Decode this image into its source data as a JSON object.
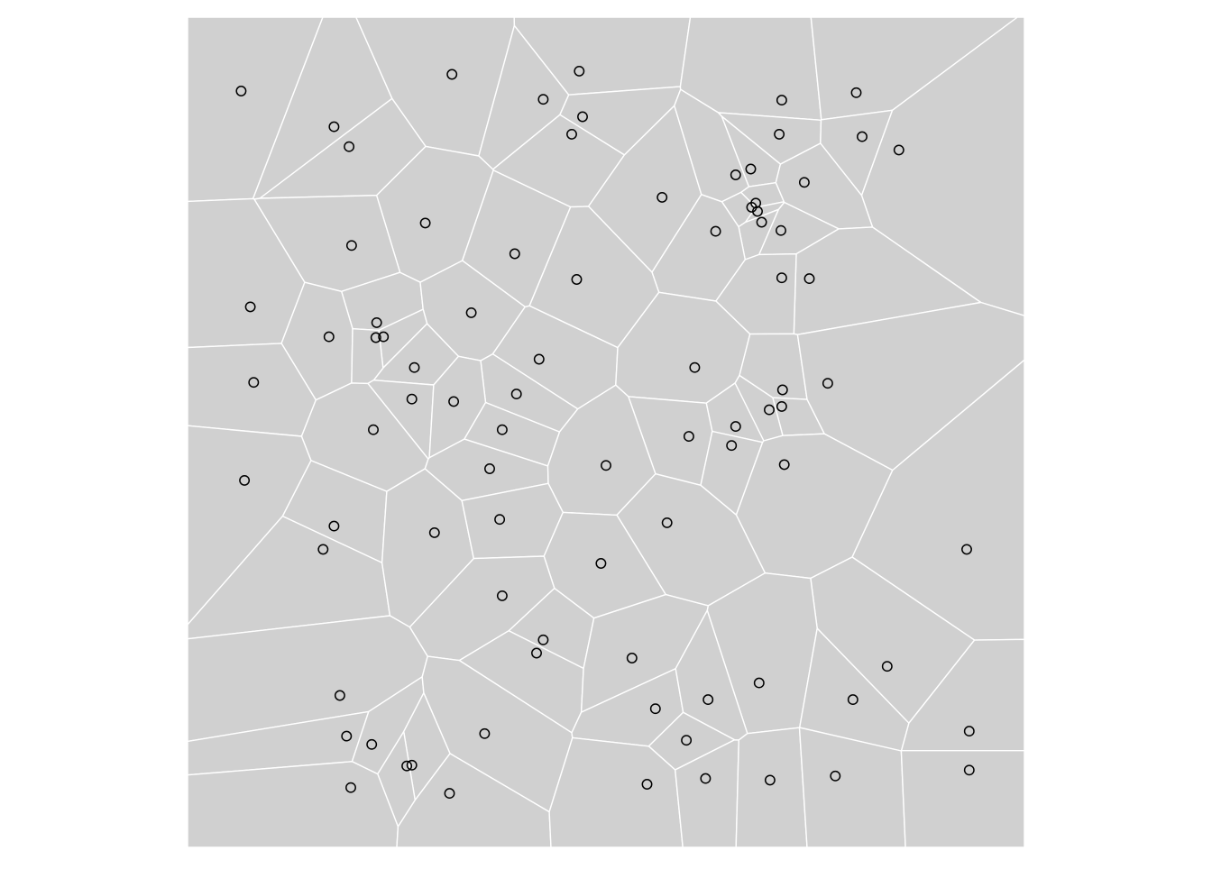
{
  "chart_data": {
    "type": "scatter",
    "title": "",
    "xlabel": "",
    "ylabel": "",
    "xlim": [
      0,
      1
    ],
    "ylim": [
      0,
      1
    ],
    "grid": false,
    "legend": "none",
    "colors": {
      "cell_fill": "#d0d0d0",
      "cell_edge": "#ffffff",
      "point_stroke": "#000000",
      "background": "#ffffff"
    },
    "points": [
      [
        0.064,
        0.911
      ],
      [
        0.175,
        0.868
      ],
      [
        0.193,
        0.844
      ],
      [
        0.316,
        0.931
      ],
      [
        0.425,
        0.901
      ],
      [
        0.468,
        0.935
      ],
      [
        0.472,
        0.88
      ],
      [
        0.459,
        0.859
      ],
      [
        0.567,
        0.783
      ],
      [
        0.71,
        0.9
      ],
      [
        0.799,
        0.909
      ],
      [
        0.707,
        0.859
      ],
      [
        0.806,
        0.856
      ],
      [
        0.85,
        0.84
      ],
      [
        0.655,
        0.81
      ],
      [
        0.673,
        0.817
      ],
      [
        0.737,
        0.801
      ],
      [
        0.679,
        0.776
      ],
      [
        0.674,
        0.771
      ],
      [
        0.681,
        0.766
      ],
      [
        0.686,
        0.753
      ],
      [
        0.631,
        0.742
      ],
      [
        0.709,
        0.743
      ],
      [
        0.743,
        0.685
      ],
      [
        0.71,
        0.686
      ],
      [
        0.284,
        0.752
      ],
      [
        0.196,
        0.725
      ],
      [
        0.391,
        0.715
      ],
      [
        0.465,
        0.684
      ],
      [
        0.075,
        0.651
      ],
      [
        0.226,
        0.632
      ],
      [
        0.339,
        0.644
      ],
      [
        0.234,
        0.615
      ],
      [
        0.271,
        0.578
      ],
      [
        0.169,
        0.615
      ],
      [
        0.225,
        0.614
      ],
      [
        0.079,
        0.56
      ],
      [
        0.42,
        0.588
      ],
      [
        0.393,
        0.546
      ],
      [
        0.268,
        0.54
      ],
      [
        0.318,
        0.537
      ],
      [
        0.376,
        0.503
      ],
      [
        0.606,
        0.578
      ],
      [
        0.711,
        0.551
      ],
      [
        0.71,
        0.531
      ],
      [
        0.695,
        0.527
      ],
      [
        0.765,
        0.559
      ],
      [
        0.655,
        0.507
      ],
      [
        0.599,
        0.495
      ],
      [
        0.65,
        0.484
      ],
      [
        0.222,
        0.503
      ],
      [
        0.068,
        0.442
      ],
      [
        0.361,
        0.456
      ],
      [
        0.5,
        0.46
      ],
      [
        0.713,
        0.461
      ],
      [
        0.931,
        0.359
      ],
      [
        0.175,
        0.387
      ],
      [
        0.162,
        0.359
      ],
      [
        0.295,
        0.379
      ],
      [
        0.373,
        0.395
      ],
      [
        0.573,
        0.391
      ],
      [
        0.494,
        0.342
      ],
      [
        0.376,
        0.303
      ],
      [
        0.425,
        0.25
      ],
      [
        0.417,
        0.234
      ],
      [
        0.531,
        0.228
      ],
      [
        0.836,
        0.218
      ],
      [
        0.683,
        0.198
      ],
      [
        0.795,
        0.178
      ],
      [
        0.182,
        0.183
      ],
      [
        0.19,
        0.134
      ],
      [
        0.22,
        0.124
      ],
      [
        0.355,
        0.137
      ],
      [
        0.268,
        0.099
      ],
      [
        0.262,
        0.098
      ],
      [
        0.559,
        0.167
      ],
      [
        0.622,
        0.178
      ],
      [
        0.596,
        0.129
      ],
      [
        0.195,
        0.072
      ],
      [
        0.313,
        0.065
      ],
      [
        0.549,
        0.076
      ],
      [
        0.619,
        0.083
      ],
      [
        0.696,
        0.081
      ],
      [
        0.774,
        0.086
      ],
      [
        0.934,
        0.14
      ],
      [
        0.934,
        0.093
      ]
    ]
  }
}
